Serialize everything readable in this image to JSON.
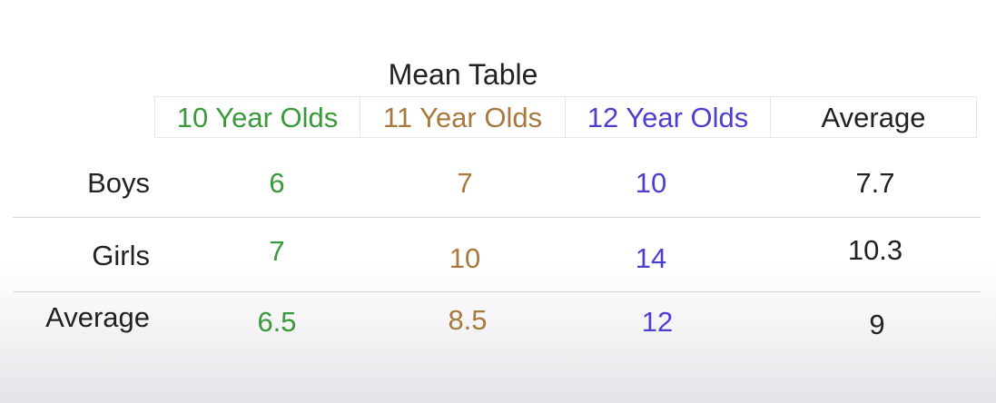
{
  "title": "Mean Table",
  "colors": {
    "ten": "#3a9a3a",
    "eleven": "#a9783c",
    "twelve": "#4b3fd0",
    "average": "#222222"
  },
  "columns": [
    "10 Year Olds",
    "11 Year Olds",
    "12 Year Olds",
    "Average"
  ],
  "rows": [
    {
      "label": "Boys",
      "values": [
        "6",
        "7",
        "10",
        "7.7"
      ]
    },
    {
      "label": "Girls",
      "values": [
        "7",
        "10",
        "14",
        "10.3"
      ]
    },
    {
      "label": "Average",
      "values": [
        "6.5",
        "8.5",
        "12",
        "9"
      ]
    }
  ]
}
